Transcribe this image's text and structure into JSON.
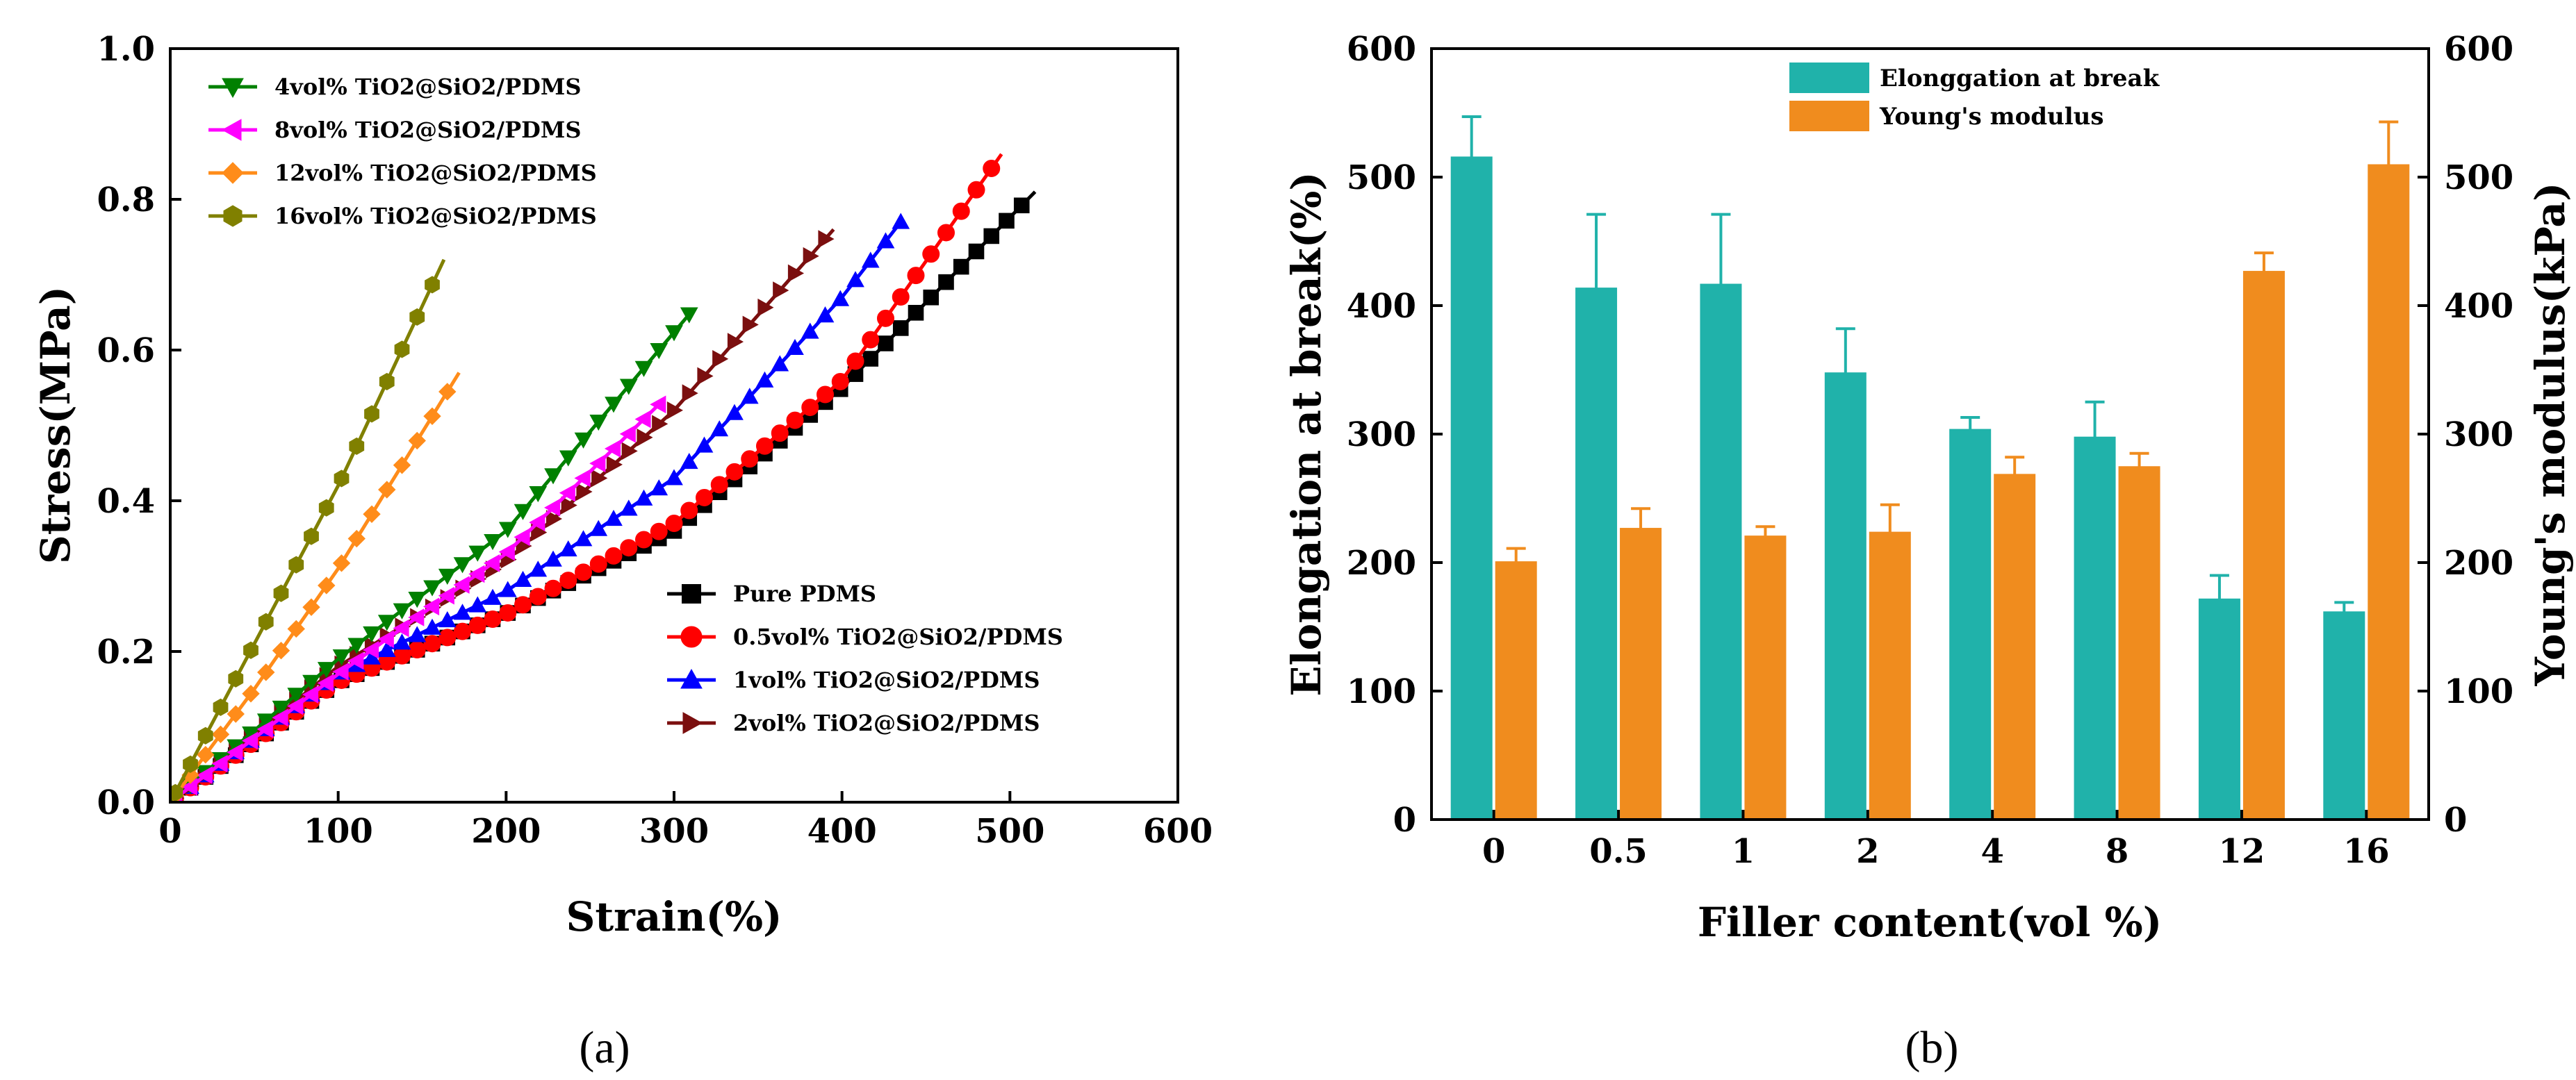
{
  "chart_data": [
    {
      "type": "line",
      "panel_label": "(a)",
      "xlabel": "Strain(%)",
      "ylabel": "Stress(MPa)",
      "xlim": [
        0,
        600
      ],
      "ylim": [
        0.0,
        1.0
      ],
      "xticks": [
        "0",
        "100",
        "200",
        "300",
        "400",
        "500",
        "600"
      ],
      "yticks": [
        "0.0",
        "0.2",
        "0.4",
        "0.6",
        "0.8",
        "1.0"
      ],
      "series": [
        {
          "name": "Pure PDMS",
          "color": "#000000",
          "marker": "square",
          "x": [
            0,
            100,
            200,
            300,
            400,
            515
          ],
          "y": [
            0,
            0.16,
            0.25,
            0.36,
            0.55,
            0.81
          ]
        },
        {
          "name": "0.5vol% TiO2@SiO2/PDMS",
          "color": "#ff0000",
          "marker": "circle",
          "x": [
            0,
            100,
            200,
            300,
            400,
            495
          ],
          "y": [
            0,
            0.16,
            0.25,
            0.37,
            0.56,
            0.86
          ]
        },
        {
          "name": "1vol% TiO2@SiO2/PDMS",
          "color": "#0000ff",
          "marker": "triangle-up",
          "x": [
            0,
            100,
            200,
            300,
            400,
            435
          ],
          "y": [
            0,
            0.17,
            0.28,
            0.43,
            0.67,
            0.77
          ]
        },
        {
          "name": "2vol% TiO2@SiO2/PDMS",
          "color": "#7b0f0f",
          "marker": "triangle-right",
          "x": [
            0,
            100,
            200,
            300,
            395
          ],
          "y": [
            0,
            0.18,
            0.32,
            0.52,
            0.76
          ]
        },
        {
          "name": "4vol% TiO2@SiO2/PDMS",
          "color": "#008000",
          "marker": "triangle-down",
          "x": [
            0,
            100,
            200,
            310
          ],
          "y": [
            0,
            0.19,
            0.36,
            0.65
          ]
        },
        {
          "name": "8vol% TiO2@SiO2/PDMS",
          "color": "#ff00ff",
          "marker": "triangle-left",
          "x": [
            0,
            100,
            200,
            292
          ],
          "y": [
            0,
            0.17,
            0.33,
            0.53
          ]
        },
        {
          "name": "12vol% TiO2@SiO2/PDMS",
          "color": "#ff8c1a",
          "marker": "diamond",
          "x": [
            0,
            50,
            100,
            172
          ],
          "y": [
            0,
            0.15,
            0.31,
            0.57
          ]
        },
        {
          "name": "16vol% TiO2@SiO2/PDMS",
          "color": "#808000",
          "marker": "hexagon",
          "x": [
            0,
            50,
            100,
            163
          ],
          "y": [
            0,
            0.21,
            0.42,
            0.72
          ]
        }
      ],
      "legend_groups": [
        [
          "4vol% TiO2@SiO2/PDMS",
          "8vol% TiO2@SiO2/PDMS",
          "12vol% TiO2@SiO2/PDMS",
          "16vol% TiO2@SiO2/PDMS"
        ],
        [
          "Pure PDMS",
          "0.5vol% TiO2@SiO2/PDMS",
          "1vol% TiO2@SiO2/PDMS",
          "2vol% TiO2@SiO2/PDMS"
        ]
      ]
    },
    {
      "type": "bar",
      "panel_label": "(b)",
      "xlabel": "Filler content(vol %)",
      "ylabel": "Elongation at break(%)",
      "y2label": "Young's modulus(kPa)",
      "ylim": [
        0,
        600
      ],
      "y2lim": [
        0,
        600
      ],
      "yticks": [
        "0",
        "100",
        "200",
        "300",
        "400",
        "500",
        "600"
      ],
      "y2ticks": [
        "0",
        "100",
        "200",
        "300",
        "400",
        "500",
        "600"
      ],
      "categories": [
        "0",
        "0.5",
        "1",
        "2",
        "4",
        "8",
        "12",
        "16"
      ],
      "series": [
        {
          "name": "Elonggation at break",
          "color": "#20b2aa",
          "axis": "left",
          "values": [
            516,
            414,
            417,
            348,
            304,
            298,
            172,
            162
          ],
          "errors": [
            31,
            57,
            54,
            34,
            9,
            27,
            18,
            7
          ]
        },
        {
          "name": "Young's modulus",
          "color": "#f08c1e",
          "axis": "right",
          "values": [
            201,
            227,
            221,
            224,
            269,
            275,
            427,
            510
          ],
          "errors": [
            10,
            15,
            7,
            21,
            13,
            10,
            14,
            33
          ]
        }
      ]
    }
  ]
}
